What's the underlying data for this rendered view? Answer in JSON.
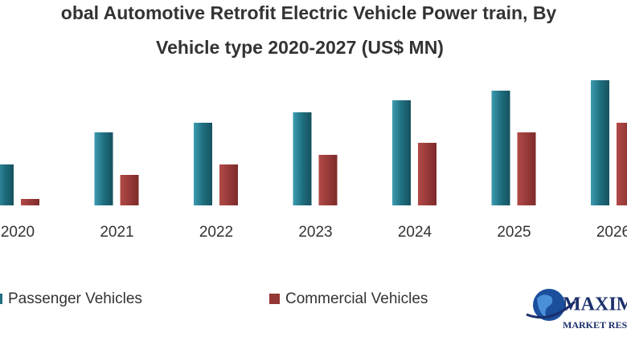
{
  "chart_data": {
    "type": "bar",
    "title": [
      "obal Automotive Retrofit Electric Vehicle Power train, By",
      "Vehicle type 2020-2027 (US$ MN)"
    ],
    "categories": [
      "2020",
      "2021",
      "2022",
      "2023",
      "2024",
      "2025",
      "2026"
    ],
    "series": [
      {
        "name": "Passenger Vehicles",
        "color": "#1f6f80",
        "values": [
          51,
          91,
          103,
          116,
          131,
          143,
          156
        ]
      },
      {
        "name": "Commercial Vehicles",
        "color": "#953735",
        "values": [
          8,
          38,
          51,
          63,
          78,
          91,
          103
        ]
      }
    ]
  },
  "logo": {
    "name": "MAXIM",
    "subtitle": "MARKET RES"
  }
}
